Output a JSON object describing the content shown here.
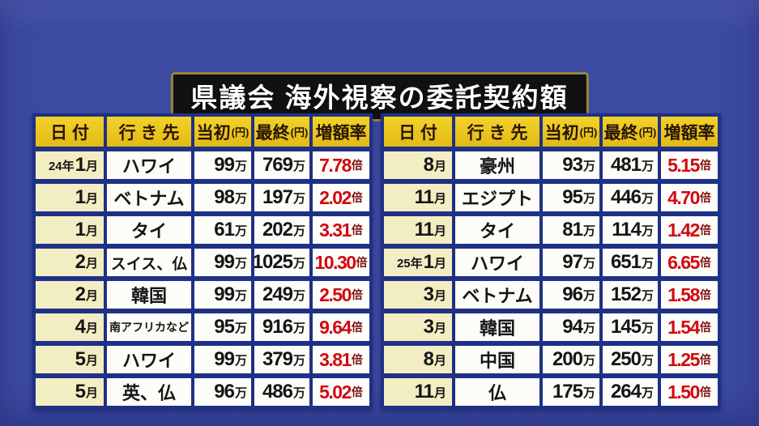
{
  "title": "県議会 海外視察の委託契約額",
  "colors": {
    "background_blue": "#3c4aa2",
    "grid_navy": "#1f3186",
    "header_gold": "#e9c41f",
    "date_cream": "#f3edc4",
    "cell_white": "#fcfcf8",
    "rate_red": "#d00a10",
    "title_bg": "#111111",
    "title_border": "#96863a"
  },
  "table": {
    "headers": [
      {
        "label": "日 付",
        "unit": ""
      },
      {
        "label": "行 き 先",
        "unit": ""
      },
      {
        "label": "当初",
        "unit": "(円)"
      },
      {
        "label": "最終",
        "unit": "(円)"
      },
      {
        "label": "増額率",
        "unit": ""
      }
    ],
    "suffix_month": "月",
    "suffix_man": "万",
    "suffix_bai": "倍"
  },
  "left_rows": [
    {
      "year": "24年",
      "month": "1",
      "dest": "ハワイ",
      "initial": "99",
      "final": "769",
      "rate": "7.78"
    },
    {
      "year": "",
      "month": "1",
      "dest": "ベトナム",
      "initial": "98",
      "final": "197",
      "rate": "2.02"
    },
    {
      "year": "",
      "month": "1",
      "dest": "タイ",
      "initial": "61",
      "final": "202",
      "rate": "3.31"
    },
    {
      "year": "",
      "month": "2",
      "dest": "スイス、仏",
      "initial": "99",
      "final": "1025",
      "rate": "10.30"
    },
    {
      "year": "",
      "month": "2",
      "dest": "韓国",
      "initial": "99",
      "final": "249",
      "rate": "2.50"
    },
    {
      "year": "",
      "month": "4",
      "dest": "南アフリカなど",
      "initial": "95",
      "final": "916",
      "rate": "9.64"
    },
    {
      "year": "",
      "month": "5",
      "dest": "ハワイ",
      "initial": "99",
      "final": "379",
      "rate": "3.81"
    },
    {
      "year": "",
      "month": "5",
      "dest": "英、仏",
      "initial": "96",
      "final": "486",
      "rate": "5.02"
    }
  ],
  "right_rows": [
    {
      "year": "",
      "month": "8",
      "dest": "豪州",
      "initial": "93",
      "final": "481",
      "rate": "5.15"
    },
    {
      "year": "",
      "month": "11",
      "dest": "エジプト",
      "initial": "95",
      "final": "446",
      "rate": "4.70"
    },
    {
      "year": "",
      "month": "11",
      "dest": "タイ",
      "initial": "81",
      "final": "114",
      "rate": "1.42"
    },
    {
      "year": "25年",
      "month": "1",
      "dest": "ハワイ",
      "initial": "97",
      "final": "651",
      "rate": "6.65"
    },
    {
      "year": "",
      "month": "3",
      "dest": "ベトナム",
      "initial": "96",
      "final": "152",
      "rate": "1.58"
    },
    {
      "year": "",
      "month": "3",
      "dest": "韓国",
      "initial": "94",
      "final": "145",
      "rate": "1.54"
    },
    {
      "year": "",
      "month": "8",
      "dest": "中国",
      "initial": "200",
      "final": "250",
      "rate": "1.25"
    },
    {
      "year": "",
      "month": "11",
      "dest": "仏",
      "initial": "175",
      "final": "264",
      "rate": "1.50"
    }
  ],
  "chart_data": {
    "type": "table",
    "title": "県議会 海外視察の委託契約額",
    "columns": [
      "日付",
      "行き先",
      "当初(円)",
      "最終(円)",
      "増額率"
    ],
    "rows_left": [
      [
        "24年1月",
        "ハワイ",
        "99万",
        "769万",
        "7.78倍"
      ],
      [
        "1月",
        "ベトナム",
        "98万",
        "197万",
        "2.02倍"
      ],
      [
        "1月",
        "タイ",
        "61万",
        "202万",
        "3.31倍"
      ],
      [
        "2月",
        "スイス、仏",
        "99万",
        "1025万",
        "10.30倍"
      ],
      [
        "2月",
        "韓国",
        "99万",
        "249万",
        "2.50倍"
      ],
      [
        "4月",
        "南アフリカなど",
        "95万",
        "916万",
        "9.64倍"
      ],
      [
        "5月",
        "ハワイ",
        "99万",
        "379万",
        "3.81倍"
      ],
      [
        "5月",
        "英、仏",
        "96万",
        "486万",
        "5.02倍"
      ]
    ],
    "rows_right": [
      [
        "8月",
        "豪州",
        "93万",
        "481万",
        "5.15倍"
      ],
      [
        "11月",
        "エジプト",
        "95万",
        "446万",
        "4.70倍"
      ],
      [
        "11月",
        "タイ",
        "81万",
        "114万",
        "1.42倍"
      ],
      [
        "25年1月",
        "ハワイ",
        "97万",
        "651万",
        "6.65倍"
      ],
      [
        "3月",
        "ベトナム",
        "96万",
        "152万",
        "1.58倍"
      ],
      [
        "3月",
        "韓国",
        "94万",
        "145万",
        "1.54倍"
      ],
      [
        "8月",
        "中国",
        "200万",
        "250万",
        "1.25倍"
      ],
      [
        "11月",
        "仏",
        "175万",
        "264万",
        "1.50倍"
      ]
    ]
  }
}
